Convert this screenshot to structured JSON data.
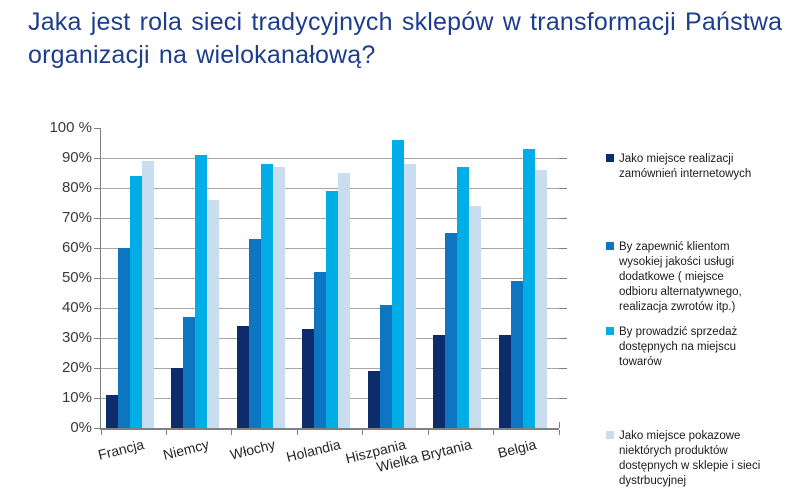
{
  "title": "Jaka jest rola sieci tradycyjnych sklepów w transformacji Państwa organizacji na wielokanałową?",
  "colors": {
    "title_text": "#1d3d8d",
    "gridline": "#a6a6a6",
    "axis": "#808080",
    "tick_text": "#3a3a3a",
    "category_text": "#262626",
    "legend_text": "#1a1a1a",
    "background": "#ffffff"
  },
  "chart_data": {
    "type": "bar",
    "unit": "%",
    "title": "Jaka jest rola sieci tradycyjnych sklepów w transformacji Państwa organizacji na wielokanałową?",
    "xlabel": "",
    "ylabel": "",
    "ylim": [
      0,
      100
    ],
    "ytick_step": 10,
    "ytick_labels": [
      "0%",
      "10%",
      "20%",
      "30%",
      "40%",
      "50%",
      "60%",
      "70%",
      "80%",
      "90%",
      "100 %"
    ],
    "grid": true,
    "legend_position": "right",
    "categories": [
      "Francja",
      "Niemcy",
      "Włochy",
      "Holandia",
      "Hiszpania",
      "Wielka Brytania",
      "Belgia"
    ],
    "series": [
      {
        "name": "Jako miejsce realizacji zamównień internetowych",
        "legend_lines": [
          "Jako miejsce realizacji",
          "zamównień internetowych"
        ],
        "color": "#0d2c6b",
        "values": [
          11,
          20,
          34,
          33,
          19,
          31,
          31
        ]
      },
      {
        "name": "By zapewnić klientom wysokiej jakości usługi dodatkowe ( miejsce odbioru alternatywnego, realizacja zwrotów itp.)",
        "legend_lines": [
          "By zapewnić klientom",
          "wysokiej jakości usługi",
          "dodatkowe ( miejsce",
          "odbioru alternatywnego,",
          "realizacja zwrotów itp.)"
        ],
        "color": "#0e76c0",
        "values": [
          60,
          37,
          63,
          52,
          41,
          65,
          49
        ]
      },
      {
        "name": "By prowadzić sprzedaż dostępnych na miejscu towarów",
        "legend_lines": [
          "By prowadzić sprzedaż",
          "dostępnych na miejscu",
          "towarów"
        ],
        "color": "#00ade6",
        "values": [
          84,
          91,
          88,
          79,
          96,
          87,
          93
        ]
      },
      {
        "name": "Jako miejsce pokazowe niektórych produktów dostępnych w sklepie i sieci dystrbucyjnej",
        "legend_lines": [
          "Jako miejsce pokazowe",
          "niektórych produktów",
          "dostępnych w sklepie i sieci",
          "dystrbucyjnej"
        ],
        "color": "#c9ddf1",
        "values": [
          89,
          76,
          87,
          85,
          88,
          74,
          86
        ]
      }
    ]
  }
}
